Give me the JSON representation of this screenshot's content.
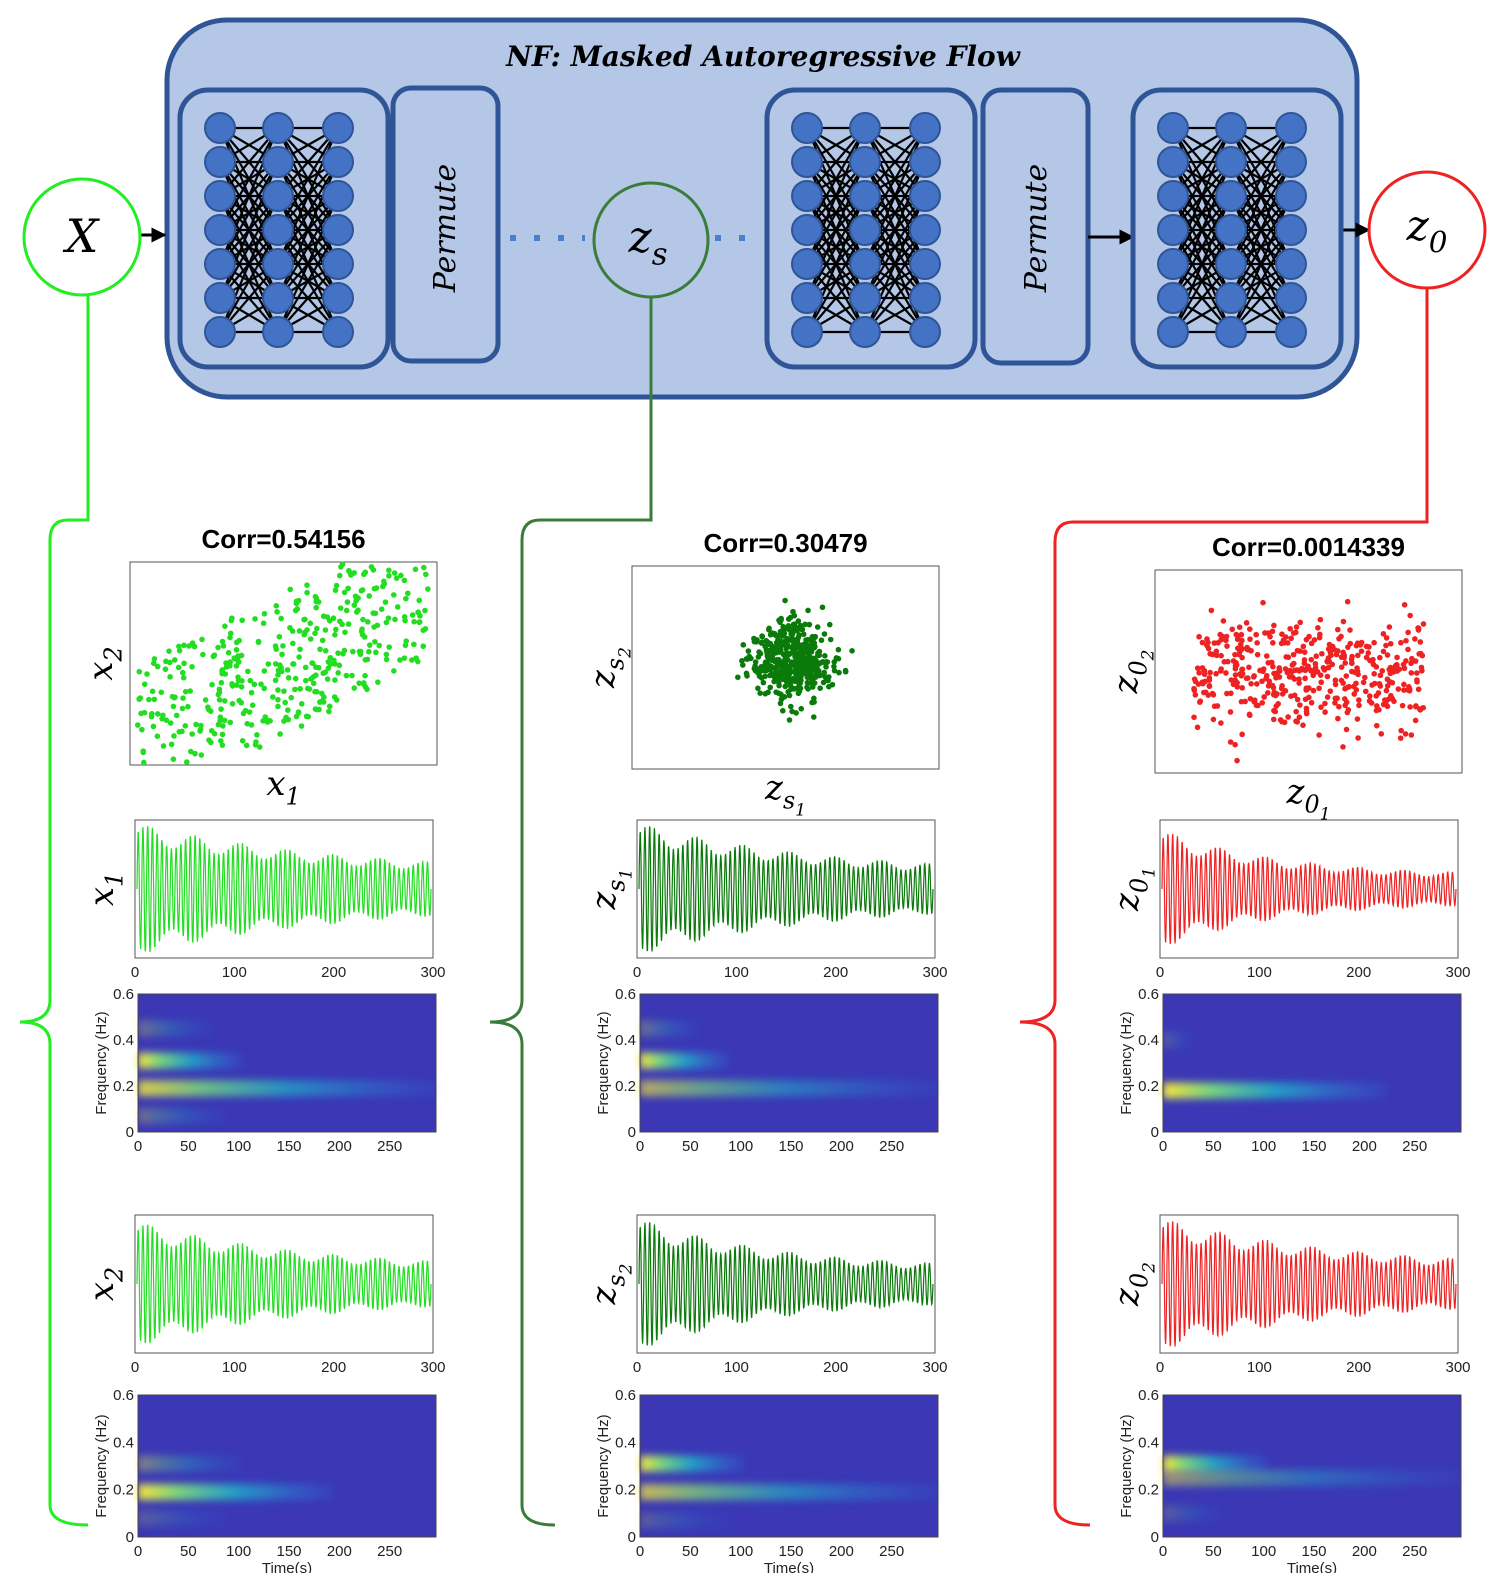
{
  "title": "NF: Masked Autoregressive Flow",
  "nodes": [
    {
      "base": "X"
    },
    {
      "base": "z",
      "sub": "s"
    },
    {
      "base": "z",
      "sub": "0"
    }
  ],
  "blocks": [
    "Permute",
    "Permute"
  ],
  "columns": [
    {
      "corr": "Corr=0.54156",
      "scatter": {
        "ylabel": {
          "base": "x",
          "sub": "2"
        },
        "xlabel": {
          "base": "x",
          "sub": "1"
        }
      },
      "signals": [
        {
          "ylabel": {
            "base": "x",
            "sub": "1"
          },
          "xticks": [
            0,
            100,
            200,
            300
          ],
          "spectrogram": {
            "ylabel": "Frequency (Hz)",
            "yticks": [
              0,
              0.2,
              0.4,
              0.6
            ],
            "xticks": [
              0,
              50,
              100,
              150,
              200,
              250
            ]
          }
        },
        {
          "ylabel": {
            "base": "x",
            "sub": "2"
          },
          "xticks": [
            0,
            100,
            200,
            300
          ],
          "spectrogram": {
            "ylabel": "Frequency (Hz)",
            "yticks": [
              0,
              0.2,
              0.4,
              0.6
            ],
            "xticks": [
              0,
              50,
              100,
              150,
              200,
              250
            ],
            "xlabel": "Time(s)"
          }
        }
      ]
    },
    {
      "corr": "Corr=0.30479",
      "scatter": {
        "ylabel": {
          "base": "z",
          "sub": "s",
          "subsub": "2"
        },
        "xlabel": {
          "base": "z",
          "sub": "s",
          "subsub": "1"
        }
      },
      "signals": [
        {
          "ylabel": {
            "base": "z",
            "sub": "s",
            "subsub": "1"
          },
          "xticks": [
            0,
            100,
            200,
            300
          ],
          "spectrogram": {
            "ylabel": "Frequency (Hz)",
            "yticks": [
              0,
              0.2,
              0.4,
              0.6
            ],
            "xticks": [
              0,
              50,
              100,
              150,
              200,
              250
            ]
          }
        },
        {
          "ylabel": {
            "base": "z",
            "sub": "s",
            "subsub": "2"
          },
          "xticks": [
            0,
            100,
            200,
            300
          ],
          "spectrogram": {
            "ylabel": "Frequency (Hz)",
            "yticks": [
              0,
              0.2,
              0.4,
              0.6
            ],
            "xticks": [
              0,
              50,
              100,
              150,
              200,
              250
            ],
            "xlabel": "Time(s)"
          }
        }
      ]
    },
    {
      "corr": "Corr=0.0014339",
      "scatter": {
        "ylabel": {
          "base": "z",
          "sub": "0",
          "subsub": "2"
        },
        "xlabel": {
          "base": "z",
          "sub": "0",
          "subsub": "1"
        }
      },
      "signals": [
        {
          "ylabel": {
            "base": "z",
            "sub": "0",
            "subsub": "1"
          },
          "xticks": [
            0,
            100,
            200,
            300
          ],
          "spectrogram": {
            "ylabel": "Frequency (Hz)",
            "yticks": [
              0,
              0.2,
              0.4,
              0.6
            ],
            "xticks": [
              0,
              50,
              100,
              150,
              200,
              250
            ]
          }
        },
        {
          "ylabel": {
            "base": "z",
            "sub": "0",
            "subsub": "2"
          },
          "xticks": [
            0,
            100,
            200,
            300
          ],
          "spectrogram": {
            "ylabel": "Frequency (Hz)",
            "yticks": [
              0,
              0.2,
              0.4,
              0.6
            ],
            "xticks": [
              0,
              50,
              100,
              150,
              200,
              250
            ],
            "xlabel": "Time(s)"
          }
        }
      ]
    }
  ]
}
